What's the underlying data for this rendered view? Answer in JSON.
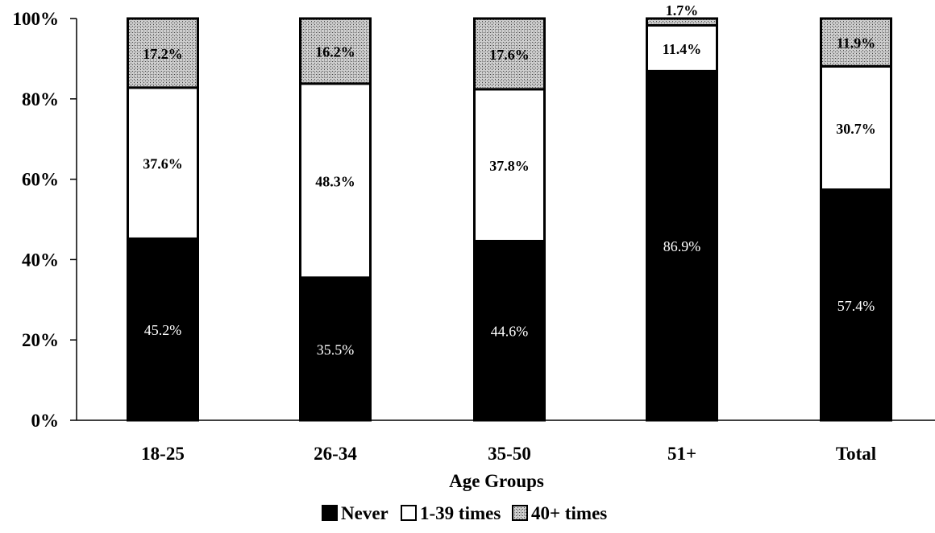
{
  "chart_data": {
    "type": "bar",
    "stacked": true,
    "title": "",
    "xlabel": "Age Groups",
    "ylabel": "",
    "ylim": [
      0,
      100
    ],
    "y_ticks": [
      0,
      20,
      40,
      60,
      80,
      100
    ],
    "y_tick_labels": [
      "0%",
      "20%",
      "40%",
      "60%",
      "80%",
      "100%"
    ],
    "categories": [
      "18-25",
      "26-34",
      "35-50",
      "51+",
      "Total"
    ],
    "series": [
      {
        "name": "Never",
        "values": [
          45.2,
          35.5,
          44.6,
          86.9,
          57.4
        ],
        "labels": [
          "45.2%",
          "35.5%",
          "44.6%",
          "86.9%",
          "57.4%"
        ],
        "fill": "#000000",
        "label_color": "#ffffff"
      },
      {
        "name": "1-39 times",
        "values": [
          37.6,
          48.3,
          37.8,
          11.4,
          30.7
        ],
        "labels": [
          "37.6%",
          "48.3%",
          "37.8%",
          "11.4%",
          "30.7%"
        ],
        "fill": "#ffffff",
        "label_color": "#000000"
      },
      {
        "name": "40+ times",
        "values": [
          17.2,
          16.2,
          17.6,
          1.7,
          11.9
        ],
        "labels": [
          "17.2%",
          "16.2%",
          "17.6%",
          "1.7%",
          "11.9%"
        ],
        "fill": "pattern-dots",
        "label_color": "#000000"
      }
    ],
    "legend_placement": "bottom-center",
    "grid": false
  }
}
